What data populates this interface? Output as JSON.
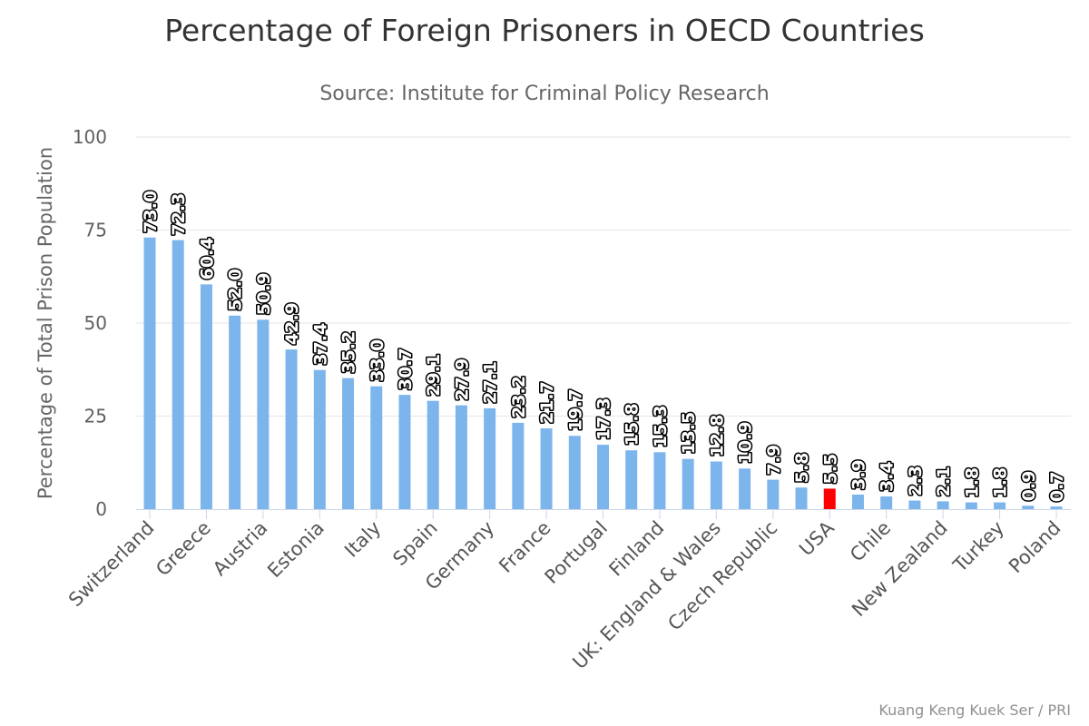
{
  "chart_data": {
    "type": "bar",
    "title": "Percentage of Foreign Prisoners in OECD Countries",
    "subtitle": "Source: Institute for Criminal Policy Research",
    "credit": "Kuang Keng Kuek Ser / PRI",
    "ylabel": "Percentage of Total Prison Population",
    "xlabel": "",
    "ylim": [
      0,
      100
    ],
    "yticks": [
      0,
      25,
      50,
      75,
      100
    ],
    "grid": true,
    "legend": "none",
    "colors": {
      "bar": "#7cb5ec",
      "highlight": "#ff0000",
      "grid": "#e6e6e6",
      "axis": "#ccd6eb"
    },
    "highlight_category": "USA",
    "categories": [
      "Switzerland",
      "",
      "Greece",
      "",
      "Austria",
      "",
      "Estonia",
      "",
      "Italy",
      "",
      "Spain",
      "",
      "Germany",
      "",
      "France",
      "",
      "Portugal",
      "",
      "Finland",
      "",
      "UK: England & Wales",
      "",
      "Czech Republic",
      "",
      "USA",
      "",
      "Chile",
      "",
      "New Zealand",
      "",
      "Turkey",
      "",
      "Poland"
    ],
    "values": [
      73.0,
      72.3,
      60.4,
      52.0,
      50.9,
      42.9,
      37.4,
      35.2,
      33.0,
      30.7,
      29.1,
      27.9,
      27.1,
      23.2,
      21.7,
      19.7,
      17.3,
      15.8,
      15.3,
      13.5,
      12.8,
      10.9,
      7.9,
      5.8,
      5.5,
      3.9,
      3.4,
      2.3,
      2.1,
      1.8,
      1.8,
      0.9,
      0.7
    ]
  }
}
